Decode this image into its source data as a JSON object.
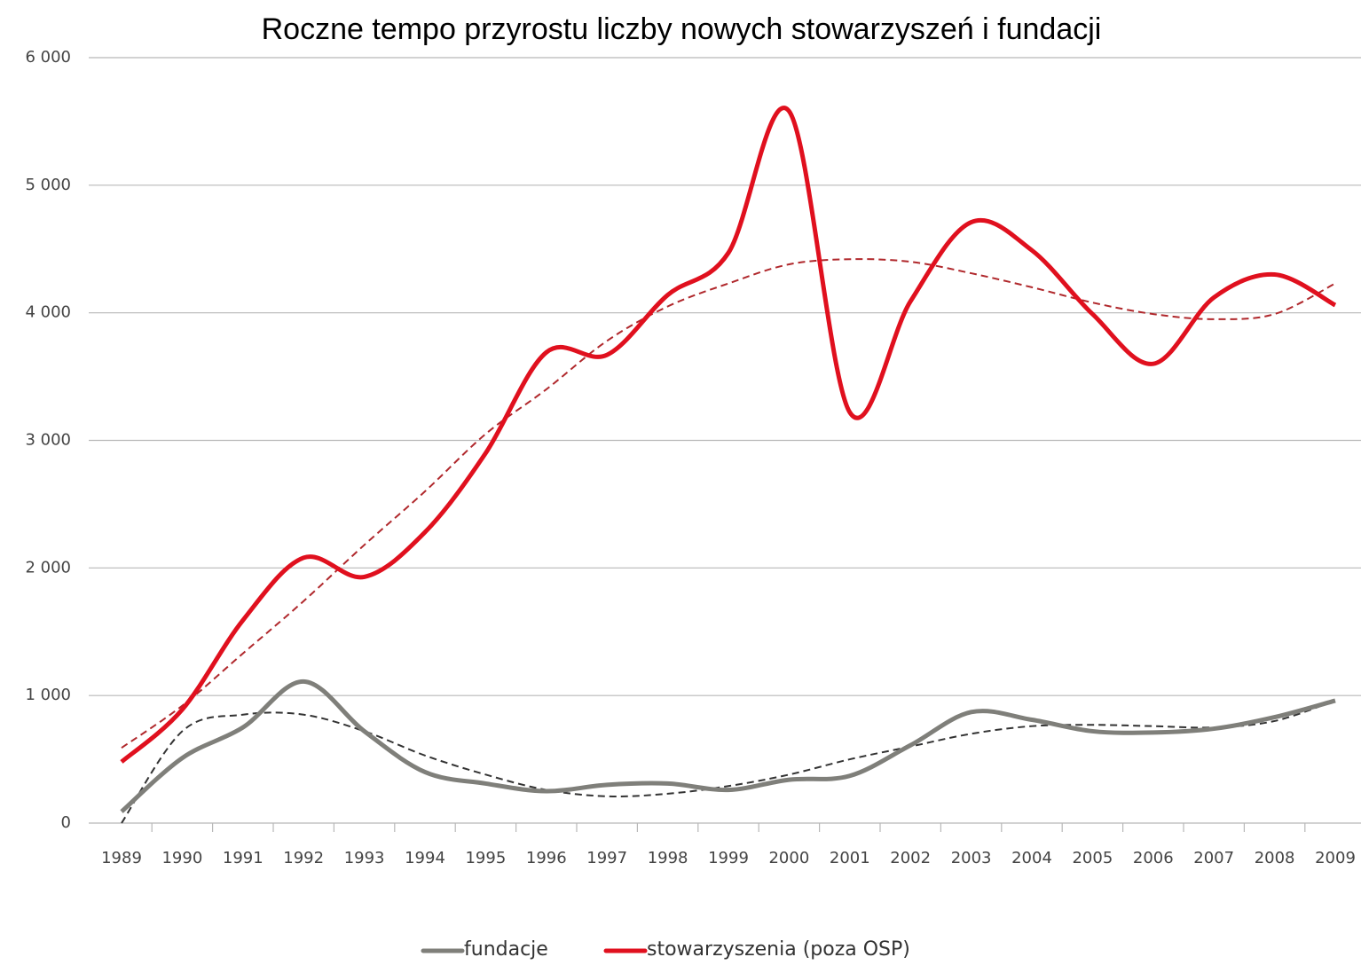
{
  "chart_data": {
    "type": "line",
    "title": "Roczne tempo przyrostu liczby nowych stowarzyszeń i fundacji",
    "categories": [
      "1989",
      "1990",
      "1991",
      "1992",
      "1993",
      "1994",
      "1995",
      "1996",
      "1997",
      "1998",
      "1999",
      "2000",
      "2001",
      "2002",
      "2003",
      "2004",
      "2005",
      "2006",
      "2007",
      "2008",
      "2009"
    ],
    "series": [
      {
        "name": "fundacje",
        "color": "#7f7f7a",
        "values": [
          90,
          510,
          750,
          1110,
          720,
          400,
          310,
          250,
          300,
          310,
          260,
          340,
          370,
          610,
          870,
          810,
          720,
          710,
          740,
          830,
          960
        ]
      },
      {
        "name": "stowarzyszenia (poza OSP)",
        "color": "#e0101e",
        "values": [
          480,
          890,
          1590,
          2080,
          1930,
          2280,
          2900,
          3690,
          3670,
          4140,
          4470,
          5580,
          3220,
          4090,
          4710,
          4490,
          3990,
          3600,
          4120,
          4300,
          4060
        ]
      }
    ],
    "trends": [
      {
        "color": "#333333",
        "values": [
          0,
          720,
          850,
          850,
          720,
          530,
          380,
          260,
          210,
          230,
          290,
          380,
          500,
          600,
          700,
          760,
          770,
          760,
          750,
          800,
          960
        ]
      },
      {
        "color": "#b0282c",
        "values": [
          590,
          920,
          1330,
          1740,
          2180,
          2600,
          3050,
          3400,
          3780,
          4050,
          4230,
          4380,
          4420,
          4400,
          4310,
          4200,
          4080,
          3990,
          3950,
          3990,
          4230
        ]
      }
    ],
    "ylim": [
      0,
      6000
    ],
    "yticks": [
      0,
      {
        "value": 1000,
        "label": "1 000"
      },
      {
        "value": 2000,
        "label": "2 000"
      },
      {
        "value": 3000,
        "label": "3 000"
      },
      {
        "value": 4000,
        "label": "4 000"
      },
      {
        "value": 5000,
        "label": "5 000"
      },
      {
        "value": 6000,
        "label": "6 000"
      }
    ],
    "grid": true,
    "legend": "bottom"
  }
}
